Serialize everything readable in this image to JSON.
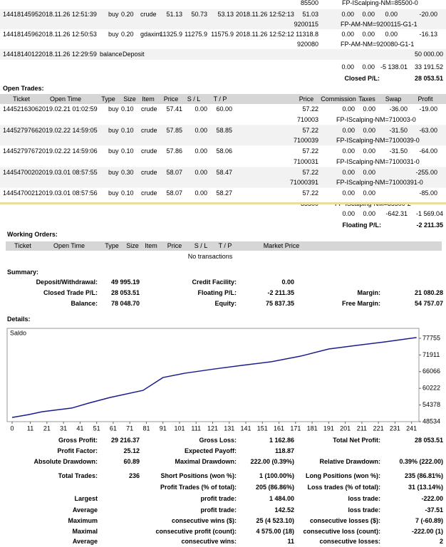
{
  "closed_trades": {
    "fragment": {
      "order": "85500",
      "comment": "FP-IScalping-NM=85500-0"
    },
    "rows": [
      {
        "ticket": "1441814595",
        "open_time": "2018.11.26 12:51:39",
        "type": "buy",
        "size": "0.20",
        "item": "crude",
        "price": "51.13",
        "sl": "50.73",
        "tp": "53.13",
        "close_time": "2018.11.26 12:52:13",
        "close_price": "51.03",
        "commission": "0.00",
        "taxes": "0.00",
        "swap": "0.00",
        "profit": "-20.00",
        "order": "9200115",
        "comment": "FP-AM-NM=9200115-G1-1"
      },
      {
        "ticket": "1441814596",
        "open_time": "2018.11.26 12:50:53",
        "type": "buy",
        "size": "0.20",
        "item": "gdaxim",
        "price": "11325.9",
        "sl": "11275.9",
        "tp": "11575.9",
        "close_time": "2018.11.26 12:52:12",
        "close_price": "11318.8",
        "commission": "0.00",
        "taxes": "0.00",
        "swap": "0.00",
        "profit": "-16.13",
        "order": "920080",
        "comment": "FP-AM-NM=920080-G1-1"
      }
    ],
    "balance": {
      "ticket": "1441814012",
      "time": "2018.11.26 12:29:59",
      "type": "balance",
      "item": "Deposit",
      "profit": "50 000.00"
    },
    "totals": {
      "commission": "0.00",
      "taxes": "0.00",
      "swap": "-5 138.01",
      "profit": "33 191.52"
    },
    "closed_pl_label": "Closed P/L:",
    "closed_pl": "28 053.51"
  },
  "open_trades": {
    "title": "Open Trades:",
    "header": [
      "Ticket",
      "Open Time",
      "Type",
      "Size",
      "Item",
      "Price",
      "S / L",
      "T / P",
      "Price",
      "Commission",
      "Taxes",
      "Swap",
      "Profit"
    ],
    "rows": [
      {
        "ticket": "1445216306",
        "open_time": "2019.02.21 01:02:59",
        "type": "buy",
        "size": "0.10",
        "item": "crude",
        "price": "57.41",
        "sl": "0.00",
        "tp": "60.00",
        "cur_price": "57.22",
        "commission": "0.00",
        "taxes": "0.00",
        "swap": "-36.00",
        "profit": "-19.00",
        "order": "710003",
        "comment": "FP-IScalping-NM=710003-0"
      },
      {
        "ticket": "1445279766",
        "open_time": "2019.02.22 14:59:05",
        "type": "buy",
        "size": "0.10",
        "item": "crude",
        "price": "57.85",
        "sl": "0.00",
        "tp": "58.85",
        "cur_price": "57.22",
        "commission": "0.00",
        "taxes": "0.00",
        "swap": "-31.50",
        "profit": "-63.00",
        "order": "7100039",
        "comment": "FP-IScalping-NM=7100039-0"
      },
      {
        "ticket": "1445279767",
        "open_time": "2019.02.22 14:59:06",
        "type": "buy",
        "size": "0.10",
        "item": "crude",
        "price": "57.86",
        "sl": "0.00",
        "tp": "58.06",
        "cur_price": "57.22",
        "commission": "0.00",
        "taxes": "0.00",
        "swap": "-31.50",
        "profit": "-64.00",
        "order": "7100031",
        "comment": "FP-IScalping-NM=7100031-0"
      },
      {
        "ticket": "1445470020",
        "open_time": "2019.03.01 08:57:55",
        "type": "buy",
        "size": "0.30",
        "item": "crude",
        "price": "58.07",
        "sl": "0.00",
        "tp": "58.47",
        "cur_price": "57.22",
        "commission": "0.00",
        "taxes": "0.00",
        "profit": "-255.00",
        "order": "71000391",
        "comment": "FP-IScalping-NM=71000391-0"
      },
      {
        "ticket": "1445470021",
        "open_time": "2019.03.01 08:57:56",
        "type": "buy",
        "size": "0.10",
        "item": "crude",
        "price": "58.07",
        "sl": "0.00",
        "tp": "58.27",
        "cur_price": "57.22",
        "commission": "0.00",
        "taxes": "0.00",
        "profit": "-85.00"
      }
    ],
    "fragment": {
      "order": "85500",
      "comment": "FP-IScalping-NM=85500-2"
    },
    "totals": {
      "commission": "0.00",
      "taxes": "0.00",
      "swap": "-642.31",
      "profit": "-1 569.04"
    },
    "floating_pl_label": "Floating P/L:",
    "floating_pl": "-2 211.35"
  },
  "working_orders": {
    "title": "Working Orders:",
    "header": [
      "Ticket",
      "Open Time",
      "Type",
      "Size",
      "Item",
      "Price",
      "S / L",
      "T / P",
      "Market Price"
    ],
    "empty": "No transactions"
  },
  "summary": {
    "title": "Summary:",
    "rows": [
      [
        "Deposit/Withdrawal:",
        "49 995.19",
        "Credit Facility:",
        "0.00",
        null,
        null
      ],
      [
        "Closed Trade P/L:",
        "28 053.51",
        "Floating P/L:",
        "-2 211.35",
        "Margin:",
        "21 080.28"
      ],
      [
        "Balance:",
        "78 048.70",
        "Equity:",
        "75 837.35",
        "Free Margin:",
        "54 757.07"
      ]
    ]
  },
  "details": {
    "title": "Details:"
  },
  "chart_data": {
    "type": "line",
    "x": [
      0,
      10,
      18,
      36,
      46,
      59,
      79,
      91,
      104,
      122,
      139,
      156,
      174,
      191,
      208,
      225,
      244
    ],
    "series": [
      {
        "name": "Saldo",
        "color": "#1c1c8a",
        "values": [
          49995,
          51000,
          52000,
          53300,
          55000,
          57000,
          59500,
          64000,
          65500,
          67000,
          68300,
          69500,
          71500,
          74000,
          75300,
          76500,
          78048
        ]
      }
    ],
    "xlim": [
      0,
      245
    ],
    "xticks": [
      0,
      11,
      21,
      31,
      41,
      51,
      61,
      71,
      81,
      91,
      101,
      111,
      121,
      131,
      141,
      151,
      161,
      171,
      181,
      191,
      201,
      211,
      221,
      231,
      241
    ],
    "ylim": [
      48534,
      77755
    ],
    "yticks": [
      48534,
      54378,
      60222,
      66066,
      71911,
      77755
    ]
  },
  "stats": {
    "rows": [
      [
        "Gross Profit:",
        "29 216.37",
        "Gross Loss:",
        "1 162.86",
        "Total Net Profit:",
        "28 053.51"
      ],
      [
        "Profit Factor:",
        "25.12",
        "Expected Payoff:",
        "118.87",
        null,
        null
      ],
      [
        "Absolute Drawdown:",
        "60.89",
        "Maximal Drawdown:",
        "222.00 (0.39%)",
        "Relative Drawdown:",
        "0.39% (222.00)"
      ],
      [
        "Total Trades:",
        "236",
        "Short Positions (won %):",
        "1 (100.00%)",
        "Long Positions (won %):",
        "235 (86.81%)"
      ],
      [
        null,
        null,
        "Profit Trades (% of total):",
        "205 (86.86%)",
        "Loss trades (% of total):",
        "31 (13.14%)"
      ],
      [
        "Largest",
        null,
        "profit trade:",
        "1 484.00",
        "loss trade:",
        "-222.00"
      ],
      [
        "Average",
        null,
        "profit trade:",
        "142.52",
        "loss trade:",
        "-37.51"
      ],
      [
        "Maximum",
        null,
        "consecutive wins ($):",
        "25 (4 523.10)",
        "consecutive losses ($):",
        "7 (-60.89)"
      ],
      [
        "Maximal",
        null,
        "consecutive profit (count):",
        "4 575.00 (18)",
        "consecutive loss (count):",
        "-222.00 (1)"
      ],
      [
        "Average",
        null,
        "consecutive wins:",
        "11",
        "consecutive losses:",
        "2"
      ]
    ]
  }
}
